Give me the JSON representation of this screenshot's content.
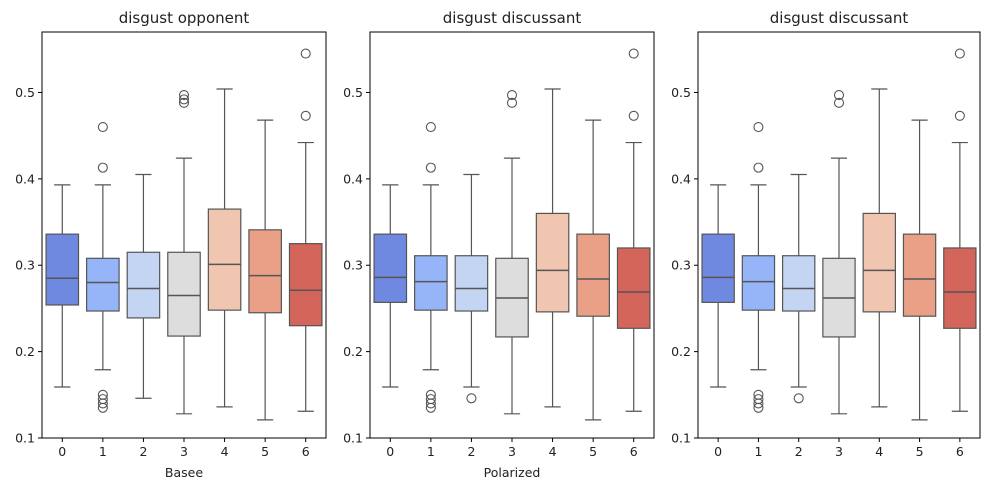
{
  "chart_data": [
    {
      "type": "boxplot",
      "title": "disgust opponent",
      "xlabel": "Basee",
      "ylabel": "",
      "categories": [
        "0",
        "1",
        "2",
        "3",
        "4",
        "5",
        "6"
      ],
      "ylim": [
        0.1,
        0.57
      ],
      "yticks": [
        "0.1",
        "0.2",
        "0.3",
        "0.4",
        "0.5"
      ],
      "grid": false,
      "boxes": [
        {
          "category": "0",
          "whisker_low": 0.159,
          "q1": 0.254,
          "median": 0.285,
          "q3": 0.336,
          "whisker_high": 0.393,
          "outliers": []
        },
        {
          "category": "1",
          "whisker_low": 0.179,
          "q1": 0.247,
          "median": 0.28,
          "q3": 0.308,
          "whisker_high": 0.393,
          "outliers": [
            0.46,
            0.413,
            0.15,
            0.145,
            0.14,
            0.135
          ]
        },
        {
          "category": "2",
          "whisker_low": 0.146,
          "q1": 0.239,
          "median": 0.273,
          "q3": 0.315,
          "whisker_high": 0.405,
          "outliers": []
        },
        {
          "category": "3",
          "whisker_low": 0.128,
          "q1": 0.218,
          "median": 0.265,
          "q3": 0.315,
          "whisker_high": 0.424,
          "outliers": [
            0.497,
            0.492,
            0.488
          ]
        },
        {
          "category": "4",
          "whisker_low": 0.136,
          "q1": 0.248,
          "median": 0.301,
          "q3": 0.365,
          "whisker_high": 0.504,
          "outliers": []
        },
        {
          "category": "5",
          "whisker_low": 0.121,
          "q1": 0.245,
          "median": 0.288,
          "q3": 0.341,
          "whisker_high": 0.468,
          "outliers": []
        },
        {
          "category": "6",
          "whisker_low": 0.131,
          "q1": 0.23,
          "median": 0.271,
          "q3": 0.325,
          "whisker_high": 0.442,
          "outliers": [
            0.545,
            0.473
          ]
        }
      ]
    },
    {
      "type": "boxplot",
      "title": "disgust discussant",
      "xlabel": "Polarized",
      "ylabel": "",
      "categories": [
        "0",
        "1",
        "2",
        "3",
        "4",
        "5",
        "6"
      ],
      "ylim": [
        0.1,
        0.57
      ],
      "yticks": [
        "0.1",
        "0.2",
        "0.3",
        "0.4",
        "0.5"
      ],
      "grid": false,
      "boxes": [
        {
          "category": "0",
          "whisker_low": 0.159,
          "q1": 0.257,
          "median": 0.286,
          "q3": 0.336,
          "whisker_high": 0.393,
          "outliers": []
        },
        {
          "category": "1",
          "whisker_low": 0.179,
          "q1": 0.248,
          "median": 0.281,
          "q3": 0.311,
          "whisker_high": 0.393,
          "outliers": [
            0.46,
            0.413,
            0.15,
            0.145,
            0.14,
            0.135
          ]
        },
        {
          "category": "2",
          "whisker_low": 0.159,
          "q1": 0.247,
          "median": 0.273,
          "q3": 0.311,
          "whisker_high": 0.405,
          "outliers": [
            0.146
          ]
        },
        {
          "category": "3",
          "whisker_low": 0.128,
          "q1": 0.217,
          "median": 0.262,
          "q3": 0.308,
          "whisker_high": 0.424,
          "outliers": [
            0.497,
            0.488
          ]
        },
        {
          "category": "4",
          "whisker_low": 0.136,
          "q1": 0.246,
          "median": 0.294,
          "q3": 0.36,
          "whisker_high": 0.504,
          "outliers": []
        },
        {
          "category": "5",
          "whisker_low": 0.121,
          "q1": 0.241,
          "median": 0.284,
          "q3": 0.336,
          "whisker_high": 0.468,
          "outliers": []
        },
        {
          "category": "6",
          "whisker_low": 0.131,
          "q1": 0.227,
          "median": 0.269,
          "q3": 0.32,
          "whisker_high": 0.442,
          "outliers": [
            0.545,
            0.473
          ]
        }
      ]
    },
    {
      "type": "boxplot",
      "title": "disgust discussant",
      "xlabel": "",
      "ylabel": "",
      "categories": [
        "0",
        "1",
        "2",
        "3",
        "4",
        "5",
        "6"
      ],
      "ylim": [
        0.1,
        0.57
      ],
      "yticks": [
        "0.1",
        "0.2",
        "0.3",
        "0.4",
        "0.5"
      ],
      "grid": false,
      "boxes": [
        {
          "category": "0",
          "whisker_low": 0.159,
          "q1": 0.257,
          "median": 0.286,
          "q3": 0.336,
          "whisker_high": 0.393,
          "outliers": []
        },
        {
          "category": "1",
          "whisker_low": 0.179,
          "q1": 0.248,
          "median": 0.281,
          "q3": 0.311,
          "whisker_high": 0.393,
          "outliers": [
            0.46,
            0.413,
            0.15,
            0.145,
            0.14,
            0.135
          ]
        },
        {
          "category": "2",
          "whisker_low": 0.159,
          "q1": 0.247,
          "median": 0.273,
          "q3": 0.311,
          "whisker_high": 0.405,
          "outliers": [
            0.146
          ]
        },
        {
          "category": "3",
          "whisker_low": 0.128,
          "q1": 0.217,
          "median": 0.262,
          "q3": 0.308,
          "whisker_high": 0.424,
          "outliers": [
            0.497,
            0.488
          ]
        },
        {
          "category": "4",
          "whisker_low": 0.136,
          "q1": 0.246,
          "median": 0.294,
          "q3": 0.36,
          "whisker_high": 0.504,
          "outliers": []
        },
        {
          "category": "5",
          "whisker_low": 0.121,
          "q1": 0.241,
          "median": 0.284,
          "q3": 0.336,
          "whisker_high": 0.468,
          "outliers": []
        },
        {
          "category": "6",
          "whisker_low": 0.131,
          "q1": 0.227,
          "median": 0.269,
          "q3": 0.32,
          "whisker_high": 0.442,
          "outliers": [
            0.545,
            0.473
          ]
        }
      ]
    }
  ],
  "colors": {
    "palette": [
      "#7089e0",
      "#96b5f8",
      "#c4d5f3",
      "#dddddd",
      "#f0c6b0",
      "#e9a087",
      "#d3655a"
    ],
    "line": "#555555",
    "axis": "#000000"
  }
}
